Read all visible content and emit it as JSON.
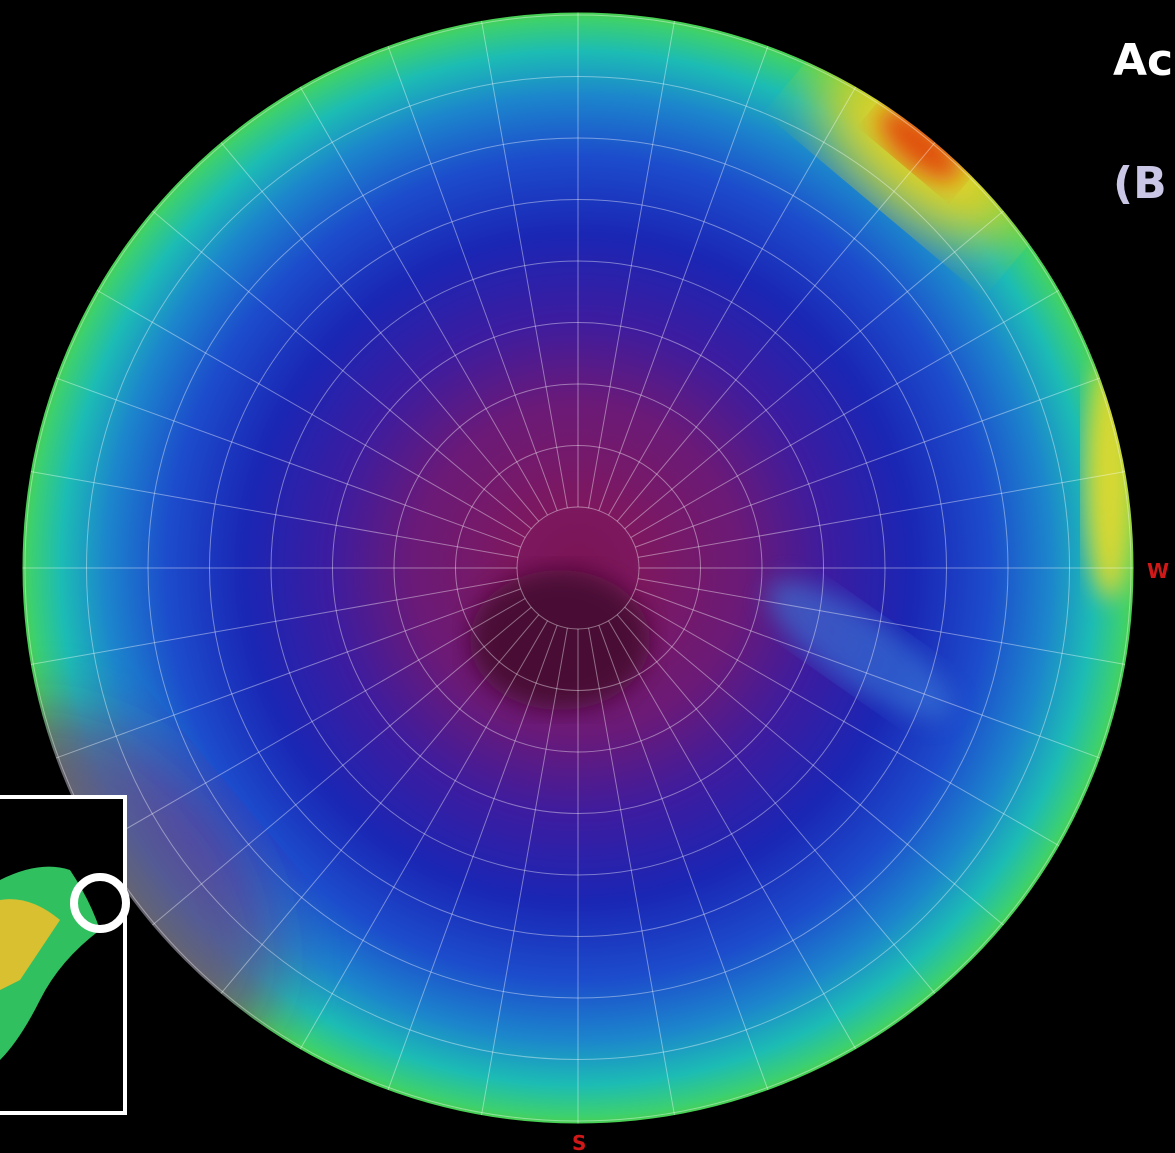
{
  "labels": {
    "title": "Ac",
    "subtitle": "(B",
    "west": "W",
    "south": "S"
  }
}
